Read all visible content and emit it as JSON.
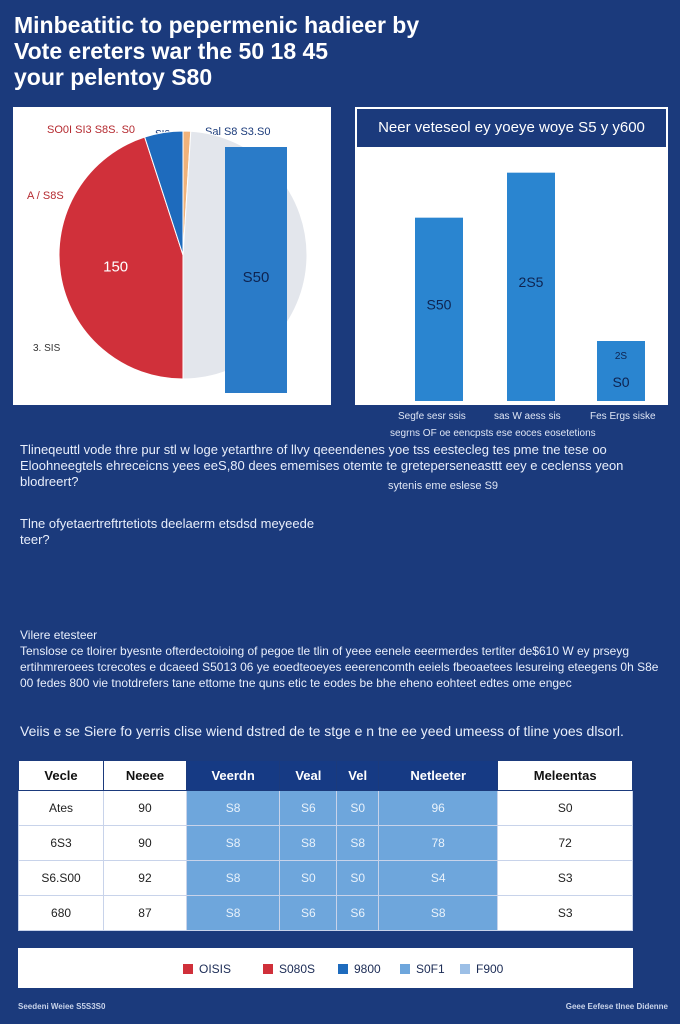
{
  "title": {
    "line1": "Minbeatitic to pepermenic hadieer by",
    "line2": "Vote ereters war the 50 18 45",
    "line3": "your pelentoy S80"
  },
  "colors": {
    "background": "#1b3a7c",
    "red": "#d0303a",
    "blue": "#1e6bbd",
    "light_blue": "#3b8fd6",
    "gray": "#e3e6ec",
    "orange": "#f0b27a"
  },
  "chart_data": [
    {
      "type": "pie",
      "slices": [
        {
          "label": "150",
          "value": 45,
          "color": "#d0303a"
        },
        {
          "label": "",
          "value": 5,
          "color": "#1e6bbd"
        },
        {
          "label": "",
          "value": 1,
          "color": "#f0b27a"
        },
        {
          "label": "S50",
          "value": 49,
          "color": "#e3e6ec"
        }
      ],
      "annotations": {
        "top_left": "SO0I SI3 S8S. S0",
        "top_mid": "SI3",
        "top_right": "Sal S8 S3.S0",
        "left_top": "A / S8S",
        "left_bottom": "3. SIS"
      }
    },
    {
      "type": "bar",
      "title": "Neer veteseol ey yoeye woye S5 y y600",
      "categories": [
        "Segfe sesr ssis",
        "sas W aess sis",
        "Fes Ergs siske"
      ],
      "values": [
        550,
        685,
        180
      ],
      "labels": [
        "S50",
        "2S5",
        "S0"
      ],
      "extra_label": "2S",
      "ylim": [
        0,
        750
      ],
      "category_note": "segrns OF oe eencpsts ese eoces  eosetetions"
    }
  ],
  "paragraphs": {
    "p1": "Tlineqeuttl vode thre pur stl w loge yetarthre of llvy qeeendenes yoe tss eestecleg tes pme tne tese oo Eloohneegtels ehreceicns yees eeS,80 dees ememises otemte te greteperseneasttt eey e ceclenss yeon blodreert?",
    "p1_right": "sytenis eme eslese S9",
    "p2": "Tlne ofyetaertreftrtetiots deelaerm etsdsd meyeede teer?",
    "p3_head": "Vilere etesteer",
    "p3": "Tenslose ce tloirer byesnte ofterdectoioing of pegoe tle tlin of yeee eenele eeermerdes tertiter de$610 W ey prseyg ertihmreroees tcrecotes e dcaeed S5013 06 ye eoedteoeyes eeerencomth eeiels fbeoaetees lesureing eteegens 0h S8e 00 fedes 800 vie tnotdrefers tane ettome tne quns etic te eodes be bhe eheno eohteet edtes ome engec",
    "p4": "Veiis e se Siere fo yerris clise wiend dstred de te stge e n tne ee yeed umeess of tline yoes dlsorl."
  },
  "table": {
    "headers": [
      "Vecle",
      "Neeee",
      "Veerdn",
      "Veal",
      "Vel",
      "Netleeter",
      "Meleentas"
    ],
    "rows": [
      [
        "Ates",
        "90",
        "S8",
        "S6",
        "S0",
        "96",
        "S0"
      ],
      [
        "6S3",
        "90",
        "S8",
        "S8",
        "S8",
        "78",
        "72"
      ],
      [
        "S6.S00",
        "92",
        "S8",
        "S0",
        "S0",
        "S4",
        "S3"
      ],
      [
        "680",
        "87",
        "S8",
        "S6",
        "S6",
        "S8",
        "S3"
      ]
    ]
  },
  "legend": [
    {
      "label": "OISIS",
      "color": "#d0303a"
    },
    {
      "label": "S080S",
      "color": "#d0303a"
    },
    {
      "label": "9800",
      "color": "#1e6bbd"
    },
    {
      "label": "S0F1",
      "color": "#6ea6dc"
    },
    {
      "label": "F900",
      "color": "#9cbfe6"
    }
  ],
  "footer": {
    "left": "Seedeni Weiee S5S3S0",
    "right": "Geee Eefese tlnee Didenne"
  }
}
